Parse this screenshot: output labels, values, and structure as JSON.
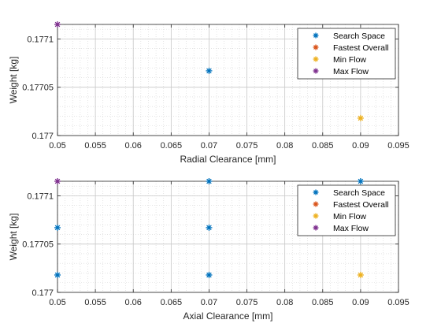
{
  "chart_data": [
    {
      "type": "scatter",
      "xlabel": "Radial Clearance [mm]",
      "ylabel": "Weight [kg]",
      "xlim": [
        0.05,
        0.095
      ],
      "ylim": [
        0.177,
        0.177115
      ],
      "xticks": [
        "0.05",
        "0.055",
        "0.06",
        "0.065",
        "0.07",
        "0.075",
        "0.08",
        "0.085",
        "0.09",
        "0.095"
      ],
      "yticks": [
        {
          "value": 0.177,
          "label": "0.177"
        },
        {
          "value": 0.17705,
          "label": "0.17705"
        },
        {
          "value": 0.1771,
          "label": "0.1771"
        }
      ],
      "grid": "major and minor, dotted",
      "legend_position": "top-right",
      "series": [
        {
          "name": "Search Space",
          "color": "#0072BD",
          "points": [
            [
              0.07,
              0.177067
            ]
          ]
        },
        {
          "name": "Fastest Overall",
          "color": "#D95319",
          "points": []
        },
        {
          "name": "Min Flow",
          "color": "#EDB120",
          "points": [
            [
              0.09,
              0.177018
            ]
          ]
        },
        {
          "name": "Max Flow",
          "color": "#7E2F8E",
          "points": [
            [
              0.05,
              0.177115
            ]
          ]
        }
      ]
    },
    {
      "type": "scatter",
      "xlabel": "Axial Clearance [mm]",
      "ylabel": "Weight [kg]",
      "xlim": [
        0.05,
        0.095
      ],
      "ylim": [
        0.177,
        0.177115
      ],
      "xticks": [
        "0.05",
        "0.055",
        "0.06",
        "0.065",
        "0.07",
        "0.075",
        "0.08",
        "0.085",
        "0.09",
        "0.095"
      ],
      "yticks": [
        {
          "value": 0.177,
          "label": "0.177"
        },
        {
          "value": 0.17705,
          "label": "0.17705"
        },
        {
          "value": 0.1771,
          "label": "0.1771"
        }
      ],
      "grid": "major and minor, dotted",
      "legend_position": "top-right",
      "series": [
        {
          "name": "Search Space",
          "color": "#0072BD",
          "points": [
            [
              0.05,
              0.177067
            ],
            [
              0.05,
              0.177018
            ],
            [
              0.07,
              0.177115
            ],
            [
              0.07,
              0.177067
            ],
            [
              0.07,
              0.177018
            ],
            [
              0.09,
              0.177115
            ]
          ]
        },
        {
          "name": "Fastest Overall",
          "color": "#D95319",
          "points": []
        },
        {
          "name": "Min Flow",
          "color": "#EDB120",
          "points": [
            [
              0.09,
              0.177018
            ]
          ]
        },
        {
          "name": "Max Flow",
          "color": "#7E2F8E",
          "points": [
            [
              0.05,
              0.177115
            ]
          ]
        }
      ]
    }
  ]
}
